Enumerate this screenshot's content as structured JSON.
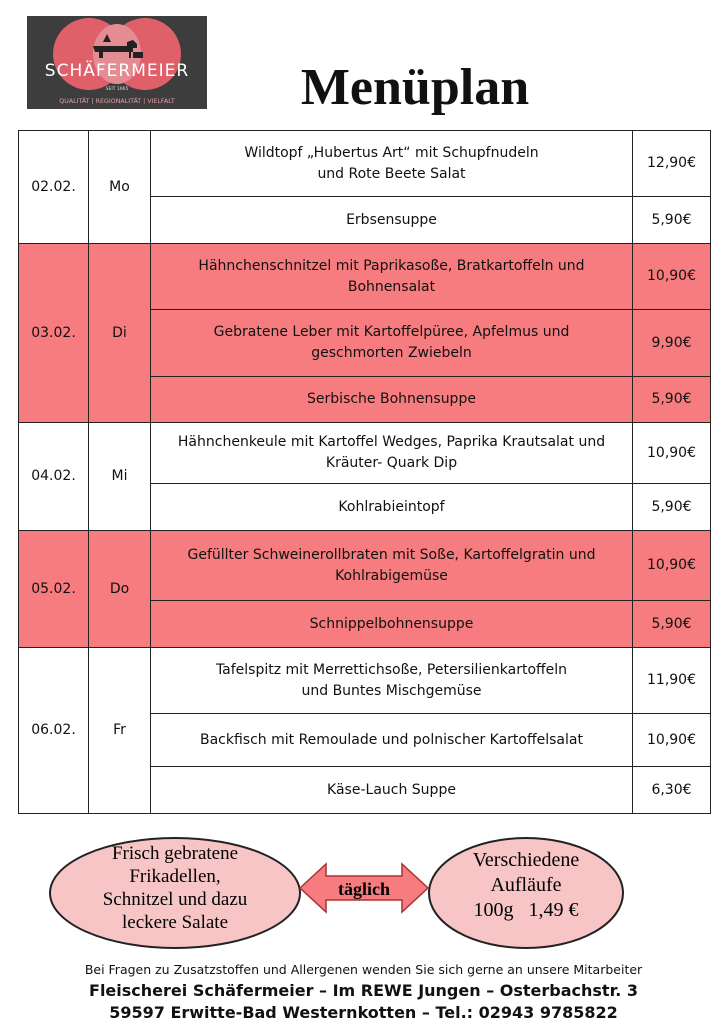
{
  "logo": {
    "name": "SCHÄFERMEIER",
    "since": "SEIT 1965",
    "tagline": "QUALITÄT | REGIONALITÄT | VIELFALT"
  },
  "title": "Menüplan",
  "highlight_color": "#f77c7f",
  "days": [
    {
      "date": "02.02.",
      "day": "Mo",
      "highlighted": false,
      "items": [
        {
          "dish": [
            "Wildtopf „Hubertus Art“ mit Schupfnudeln",
            "und Rote Beete Salat"
          ],
          "price": "12,90€"
        },
        {
          "dish": [
            "Erbsensuppe"
          ],
          "price": "5,90€"
        }
      ]
    },
    {
      "date": "03.02.",
      "day": "Di",
      "highlighted": true,
      "items": [
        {
          "dish": [
            "Hähnchenschnitzel mit Paprikasoße, Bratkartoffeln und",
            "Bohnensalat"
          ],
          "price": "10,90€"
        },
        {
          "dish": [
            "Gebratene Leber mit Kartoffelpüree, Apfelmus und",
            "geschmorten Zwiebeln"
          ],
          "price": "9,90€"
        },
        {
          "dish": [
            "Serbische Bohnensuppe"
          ],
          "price": "5,90€"
        }
      ]
    },
    {
      "date": "04.02.",
      "day": "Mi",
      "highlighted": false,
      "items": [
        {
          "dish": [
            "Hähnchenkeule mit Kartoffel Wedges, Paprika Krautsalat und",
            "Kräuter- Quark Dip"
          ],
          "price": "10,90€"
        },
        {
          "dish": [
            "Kohlrabieintopf"
          ],
          "price": "5,90€"
        }
      ]
    },
    {
      "date": "05.02.",
      "day": "Do",
      "highlighted": true,
      "items": [
        {
          "dish": [
            "Gefüllter Schweinerollbraten mit Soße, Kartoffelgratin und",
            "Kohlrabigemüse"
          ],
          "price": "10,90€"
        },
        {
          "dish": [
            "Schnippelbohnensuppe"
          ],
          "price": "5,90€"
        }
      ]
    },
    {
      "date": "06.02.",
      "day": "Fr",
      "highlighted": false,
      "items": [
        {
          "dish": [
            "Tafelspitz mit Merrettichsoße, Petersilienkartoffeln",
            "und Buntes Mischgemüse"
          ],
          "price": "11,90€"
        },
        {
          "dish": [
            "Backfisch mit Remoulade und polnischer Kartoffelsalat"
          ],
          "price": "10,90€"
        },
        {
          "dish": [
            "Käse-Lauch Suppe"
          ],
          "price": "6,30€"
        }
      ]
    }
  ],
  "extras": {
    "left": [
      "Frisch gebratene",
      "Frikadellen,",
      "Schnitzel und dazu",
      "leckere Salate"
    ],
    "arrow": "täglich",
    "right": [
      "Verschiedene",
      "Aufläufe",
      "100g   1,49 €"
    ]
  },
  "footer": [
    "Bei Fragen zu Zusatzstoffen und Allergenen wenden Sie sich gerne an unsere Mitarbeiter",
    "Fleischerei Schäfermeier – Im REWE Jungen – Osterbachstr. 3",
    "59597 Erwitte-Bad Westernkotten – Tel.: 02943 9785822"
  ]
}
